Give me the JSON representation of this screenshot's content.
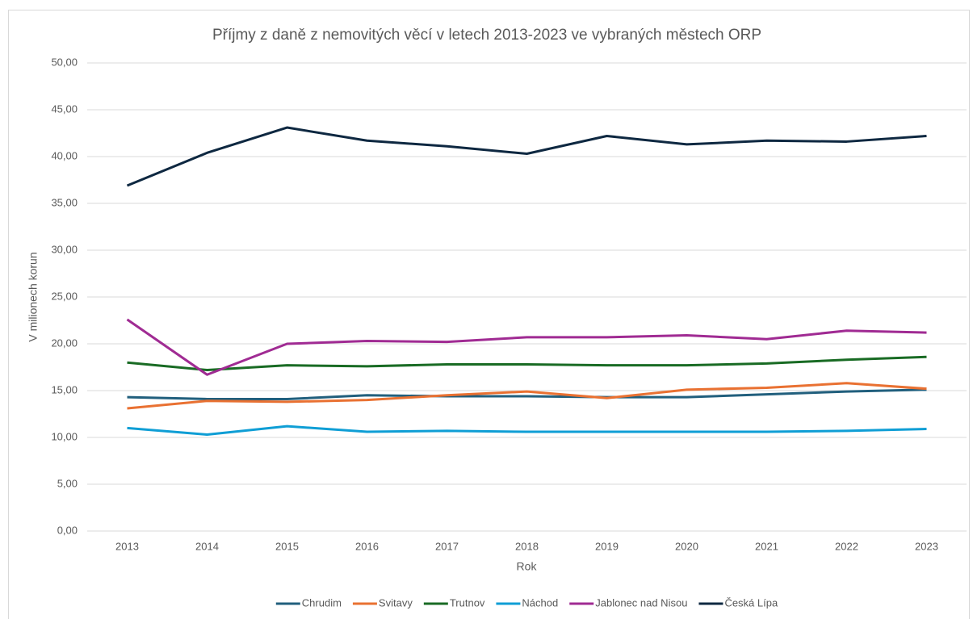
{
  "chart_data": {
    "type": "line",
    "title": "Příjmy z daně z nemovitých věcí v letech 2013-2023 ve vybraných městech ORP",
    "x_label": "Rok",
    "y_label": "V milionech korun",
    "categories": [
      "2013",
      "2014",
      "2015",
      "2016",
      "2017",
      "2018",
      "2019",
      "2020",
      "2021",
      "2022",
      "2023"
    ],
    "series": [
      {
        "name": "Chrudim",
        "color": "#215f7d",
        "values": [
          14.3,
          14.1,
          14.1,
          14.5,
          14.4,
          14.4,
          14.3,
          14.3,
          14.6,
          14.9,
          15.1
        ]
      },
      {
        "name": "Svitavy",
        "color": "#e97132",
        "values": [
          13.1,
          13.9,
          13.8,
          14.0,
          14.5,
          14.9,
          14.2,
          15.1,
          15.3,
          15.8,
          15.2
        ]
      },
      {
        "name": "Trutnov",
        "color": "#196b24",
        "values": [
          18.0,
          17.2,
          17.7,
          17.6,
          17.8,
          17.8,
          17.7,
          17.7,
          17.9,
          18.3,
          18.6
        ]
      },
      {
        "name": "Náchod",
        "color": "#0f9ed5",
        "values": [
          11.0,
          10.3,
          11.2,
          10.6,
          10.7,
          10.6,
          10.6,
          10.6,
          10.6,
          10.7,
          10.9
        ]
      },
      {
        "name": "Jablonec nad Nisou",
        "color": "#a02b93",
        "values": [
          22.6,
          16.7,
          20.0,
          20.3,
          20.2,
          20.7,
          20.7,
          20.9,
          20.5,
          21.4,
          21.2
        ]
      },
      {
        "name": "Česká Lípa",
        "color": "#0e2841",
        "values": [
          36.9,
          40.4,
          43.1,
          41.7,
          41.1,
          40.3,
          42.2,
          41.3,
          41.7,
          41.6,
          42.2
        ]
      }
    ],
    "ylim": [
      0,
      50
    ],
    "yticks": [
      {
        "value": 0,
        "label": "0,00"
      },
      {
        "value": 5,
        "label": "5,00"
      },
      {
        "value": 10,
        "label": "10,00"
      },
      {
        "value": 15,
        "label": "15,00"
      },
      {
        "value": 20,
        "label": "20,00"
      },
      {
        "value": 25,
        "label": "25,00"
      },
      {
        "value": 30,
        "label": "30,00"
      },
      {
        "value": 35,
        "label": "35,00"
      },
      {
        "value": 40,
        "label": "40,00"
      },
      {
        "value": 45,
        "label": "45,00"
      },
      {
        "value": 50,
        "label": "50,00"
      }
    ],
    "grid": true,
    "legend": "bottom"
  }
}
